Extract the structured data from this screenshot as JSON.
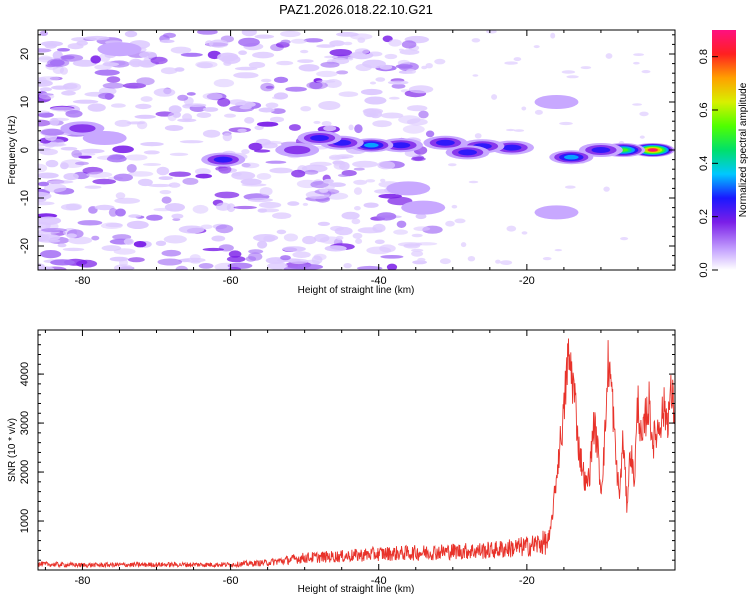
{
  "title": "PAZ1.2026.018.22.10.G21",
  "chart_data": [
    {
      "type": "heatmap",
      "xlabel": "Height of straight line (km)",
      "ylabel": "Frequency (Hz)",
      "xlim": [
        -86,
        0
      ],
      "ylim": [
        -25,
        25
      ],
      "xticks": [
        -80,
        -60,
        -40,
        -20
      ],
      "yticks": [
        -20,
        -10,
        0,
        10,
        20
      ],
      "colorbar": {
        "label": "Normalized spectral amplitude",
        "range": [
          0.0,
          0.9
        ],
        "ticks": [
          0.0,
          0.2,
          0.4,
          0.6,
          0.8
        ]
      },
      "features": [
        {
          "x": -3,
          "y": 0,
          "value": 0.9
        },
        {
          "x": -7,
          "y": 0,
          "value": 0.55
        },
        {
          "x": -10,
          "y": 0,
          "value": 0.3
        },
        {
          "x": -14,
          "y": -1.5,
          "value": 0.35
        },
        {
          "x": -22,
          "y": 0.5,
          "value": 0.3
        },
        {
          "x": -26,
          "y": 0.8,
          "value": 0.3
        },
        {
          "x": -28,
          "y": -0.5,
          "value": 0.3
        },
        {
          "x": -31,
          "y": 1.5,
          "value": 0.3
        },
        {
          "x": -37,
          "y": 1.0,
          "value": 0.3
        },
        {
          "x": -41,
          "y": 1.0,
          "value": 0.38
        },
        {
          "x": -45,
          "y": 1.5,
          "value": 0.3
        },
        {
          "x": -48,
          "y": 2.5,
          "value": 0.25
        },
        {
          "x": -51,
          "y": 0.0,
          "value": 0.2
        },
        {
          "x": -34,
          "y": -12,
          "value": 0.15
        },
        {
          "x": -36,
          "y": -8,
          "value": 0.15
        },
        {
          "x": -61,
          "y": -2,
          "value": 0.28
        },
        {
          "x": -80,
          "y": 4.5,
          "value": 0.2
        },
        {
          "x": -77,
          "y": 2.5,
          "value": 0.15
        },
        {
          "x": -75,
          "y": 21,
          "value": 0.15
        },
        {
          "x": -16,
          "y": -13,
          "value": 0.1
        },
        {
          "x": -16,
          "y": 10,
          "value": 0.1
        }
      ]
    },
    {
      "type": "line",
      "xlabel": "Height of straight line (km)",
      "ylabel": "SNR (10 * v/v)",
      "xlim": [
        -86,
        0
      ],
      "ylim": [
        0,
        4900
      ],
      "xticks": [
        -80,
        -60,
        -40,
        -20
      ],
      "yticks": [
        1000,
        2000,
        3000,
        4000
      ],
      "color": "#e8322a",
      "series": [
        {
          "x": [
            -86,
            -80,
            -70,
            -60,
            -55,
            -50,
            -45,
            -40,
            -35,
            -30,
            -25,
            -20,
            -17,
            -16.5,
            -16,
            -15.5,
            -15,
            -14.5,
            -14,
            -13.5,
            -13,
            -12.5,
            -12,
            -11.5,
            -11,
            -10.5,
            -10,
            -9.5,
            -9,
            -8.5,
            -8,
            -7.5,
            -7,
            -6.5,
            -6,
            -5.5,
            -5,
            -4.5,
            -4,
            -3.5,
            -3,
            -2.5,
            -2,
            -1.5,
            -1,
            -0.5,
            0
          ],
          "y": [
            120,
            100,
            110,
            110,
            150,
            250,
            280,
            330,
            350,
            380,
            400,
            480,
            580,
            1200,
            1900,
            2600,
            3200,
            4300,
            4100,
            3500,
            2500,
            2100,
            1700,
            2000,
            3000,
            2600,
            1600,
            2600,
            4300,
            3600,
            2300,
            1500,
            2700,
            1300,
            2500,
            1800,
            3500,
            2500,
            3100,
            3400,
            2600,
            2800,
            3050,
            3300,
            3100,
            3600,
            3200
          ]
        }
      ]
    }
  ]
}
